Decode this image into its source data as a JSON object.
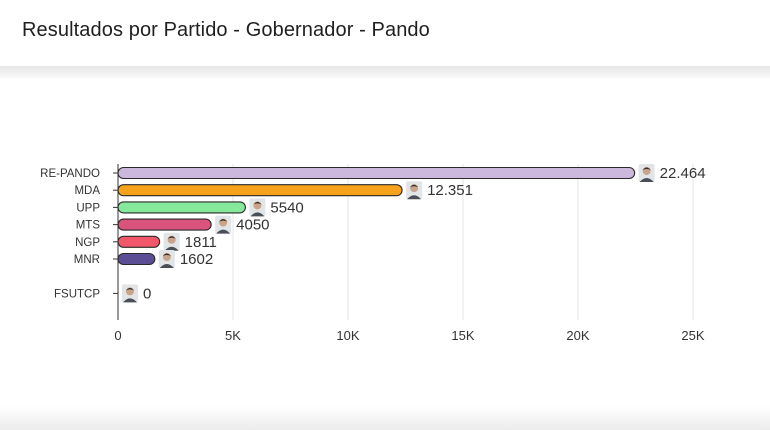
{
  "page": {
    "title": "Resultados por Partido - Gobernador - Pando"
  },
  "chart_data": {
    "type": "bar",
    "orientation": "horizontal",
    "title": "Resultados por Partido - Gobernador - Pando",
    "xlabel": "",
    "ylabel": "",
    "xlim": [
      0,
      25000
    ],
    "grid": true,
    "x_ticks": [
      "0",
      "5K",
      "10K",
      "15K",
      "20K",
      "25K"
    ],
    "x_tick_values": [
      0,
      5000,
      10000,
      15000,
      20000,
      25000
    ],
    "categories": [
      "RE-PANDO",
      "MDA",
      "UPP",
      "MTS",
      "NGP",
      "MNR",
      "FSUTCP"
    ],
    "values": [
      22464,
      12351,
      5540,
      4050,
      1811,
      1602,
      0
    ],
    "labels": [
      "22.464",
      "12.351",
      "5540",
      "4050",
      "1811",
      "1602",
      "0"
    ],
    "colors": [
      "#cbb8dc",
      "#f7a21b",
      "#86e89a",
      "#d9537d",
      "#f2576a",
      "#5b4e94",
      "#888888"
    ],
    "row_slots": [
      0,
      1,
      2,
      3,
      4,
      5,
      7
    ]
  }
}
